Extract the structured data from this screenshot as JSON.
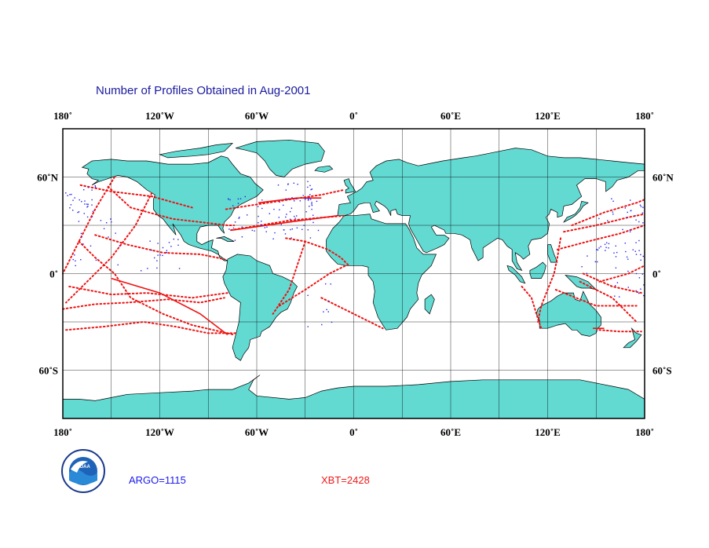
{
  "title": "Number of Profiles Obtained in Aug-2001",
  "legend": {
    "argo_label": "ARGO=1115",
    "xbt_label": "XBT=2428"
  },
  "logo": {
    "text": "NOAA"
  },
  "colors": {
    "land": "#62d9d1",
    "ocean": "#ffffff",
    "argo": "#2222ee",
    "xbt": "#ee1111",
    "title": "#1a1aa0"
  },
  "map": {
    "lon_range": [
      -180,
      180
    ],
    "lat_range": [
      -90,
      90
    ],
    "grid_lon_step": 30,
    "grid_lat_step": 30,
    "lon_ticks": [
      {
        "lon": -180,
        "label": "180˚"
      },
      {
        "lon": -120,
        "label": "120˚W"
      },
      {
        "lon": -60,
        "label": "60˚W"
      },
      {
        "lon": 0,
        "label": "0˚"
      },
      {
        "lon": 60,
        "label": "60˚E"
      },
      {
        "lon": 120,
        "label": "120˚E"
      },
      {
        "lon": 180,
        "label": "180˚"
      }
    ],
    "lat_ticks": [
      {
        "lat": 60,
        "label": "60˚N"
      },
      {
        "lat": 0,
        "label": "0˚"
      },
      {
        "lat": -60,
        "label": "60˚S"
      }
    ]
  }
}
